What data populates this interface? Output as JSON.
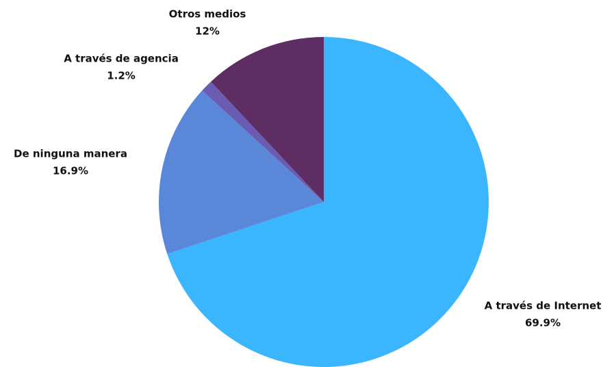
{
  "chart_data": {
    "type": "pie",
    "categories": [
      "A través de Internet",
      "De ninguna manera",
      "A través de agencia",
      "Otros medios"
    ],
    "values": [
      69.9,
      16.9,
      1.2,
      12
    ],
    "value_labels": [
      "69.9%",
      "16.9%",
      "1.2%",
      "12%"
    ],
    "colors": [
      "#3bb5fe",
      "#5b87d9",
      "#6a5cb3",
      "#5e2d63"
    ]
  }
}
